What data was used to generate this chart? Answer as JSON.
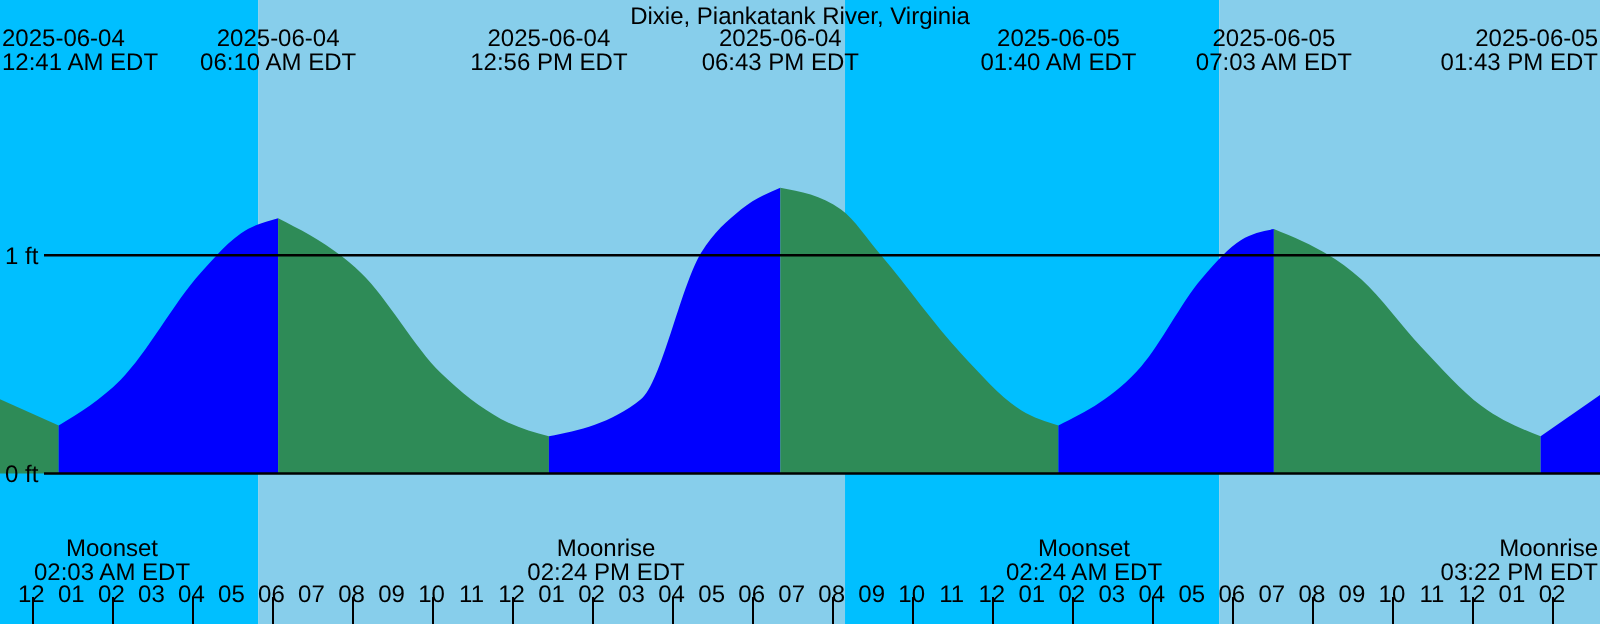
{
  "chart_data": {
    "type": "area",
    "title": "Dixie, Piankatank River, Virginia",
    "xlim": [
      "2025-06-03T23:13",
      "2025-06-05T15:12"
    ],
    "xticks": [
      {
        "value": "2025-06-04T00:00",
        "label": "12"
      },
      {
        "value": "2025-06-04T01:00",
        "label": "01"
      },
      {
        "value": "2025-06-04T02:00",
        "label": "02"
      },
      {
        "value": "2025-06-04T03:00",
        "label": "03"
      },
      {
        "value": "2025-06-04T04:00",
        "label": "04"
      },
      {
        "value": "2025-06-04T05:00",
        "label": "05"
      },
      {
        "value": "2025-06-04T06:00",
        "label": "06"
      },
      {
        "value": "2025-06-04T07:00",
        "label": "07"
      },
      {
        "value": "2025-06-04T08:00",
        "label": "08"
      },
      {
        "value": "2025-06-04T09:00",
        "label": "09"
      },
      {
        "value": "2025-06-04T10:00",
        "label": "10"
      },
      {
        "value": "2025-06-04T11:00",
        "label": "11"
      },
      {
        "value": "2025-06-04T12:00",
        "label": "12"
      },
      {
        "value": "2025-06-04T13:00",
        "label": "01"
      },
      {
        "value": "2025-06-04T14:00",
        "label": "02"
      },
      {
        "value": "2025-06-04T15:00",
        "label": "03"
      },
      {
        "value": "2025-06-04T16:00",
        "label": "04"
      },
      {
        "value": "2025-06-04T17:00",
        "label": "05"
      },
      {
        "value": "2025-06-04T18:00",
        "label": "06"
      },
      {
        "value": "2025-06-04T19:00",
        "label": "07"
      },
      {
        "value": "2025-06-04T20:00",
        "label": "08"
      },
      {
        "value": "2025-06-04T21:00",
        "label": "09"
      },
      {
        "value": "2025-06-04T22:00",
        "label": "10"
      },
      {
        "value": "2025-06-04T23:00",
        "label": "11"
      },
      {
        "value": "2025-06-05T00:00",
        "label": "12"
      },
      {
        "value": "2025-06-05T01:00",
        "label": "01"
      },
      {
        "value": "2025-06-05T02:00",
        "label": "02"
      },
      {
        "value": "2025-06-05T03:00",
        "label": "03"
      },
      {
        "value": "2025-06-05T04:00",
        "label": "04"
      },
      {
        "value": "2025-06-05T05:00",
        "label": "05"
      },
      {
        "value": "2025-06-05T06:00",
        "label": "06"
      },
      {
        "value": "2025-06-05T07:00",
        "label": "07"
      },
      {
        "value": "2025-06-05T08:00",
        "label": "08"
      },
      {
        "value": "2025-06-05T09:00",
        "label": "09"
      },
      {
        "value": "2025-06-05T10:00",
        "label": "10"
      },
      {
        "value": "2025-06-05T11:00",
        "label": "11"
      },
      {
        "value": "2025-06-05T12:00",
        "label": "12"
      },
      {
        "value": "2025-06-05T13:00",
        "label": "01"
      },
      {
        "value": "2025-06-05T14:00",
        "label": "02"
      }
    ],
    "ylim": [
      -0.69,
      2.17
    ],
    "yticks": [
      {
        "value": 0,
        "label": "0 ft"
      },
      {
        "value": 1,
        "label": "1 ft"
      }
    ],
    "grid": "y",
    "series": [
      {
        "color": "#2e8b57",
        "x": [
          "2025-06-03T23:13",
          "2025-06-04T00:41"
        ],
        "values": [
          0.34,
          0.22
        ]
      },
      {
        "color": "#0000ff",
        "x": [
          "2025-06-04T00:41",
          "2025-06-04T02:14",
          "2025-06-04T04:14",
          "2025-06-04T05:14",
          "2025-06-04T06:10"
        ],
        "values": [
          0.22,
          0.43,
          0.92,
          1.1,
          1.17
        ]
      },
      {
        "color": "#2e8b57",
        "x": [
          "2025-06-04T06:10",
          "2025-06-04T08:14",
          "2025-06-04T10:14",
          "2025-06-04T11:44",
          "2025-06-04T12:56"
        ],
        "values": [
          1.17,
          0.92,
          0.46,
          0.25,
          0.17
        ]
      },
      {
        "color": "#0000ff",
        "x": [
          "2025-06-04T12:56",
          "2025-06-04T15:14",
          "2025-06-04T16:44",
          "2025-06-04T17:44",
          "2025-06-04T18:43"
        ],
        "values": [
          0.17,
          0.34,
          1.01,
          1.21,
          1.31
        ]
      },
      {
        "color": "#2e8b57",
        "x": [
          "2025-06-04T18:43",
          "2025-06-04T20:14",
          "2025-06-04T21:14",
          "2025-06-04T23:14",
          "2025-06-05T00:44",
          "2025-06-05T01:40"
        ],
        "values": [
          1.31,
          1.21,
          1.0,
          0.55,
          0.29,
          0.22
        ]
      },
      {
        "color": "#0000ff",
        "x": [
          "2025-06-05T01:40",
          "2025-06-05T03:44",
          "2025-06-05T05:14",
          "2025-06-05T06:14",
          "2025-06-05T07:03"
        ],
        "values": [
          0.22,
          0.49,
          0.89,
          1.07,
          1.12
        ]
      },
      {
        "color": "#2e8b57",
        "x": [
          "2025-06-05T07:03",
          "2025-06-05T09:14",
          "2025-06-05T10:44",
          "2025-06-05T12:14",
          "2025-06-05T13:43"
        ],
        "values": [
          1.12,
          0.89,
          0.58,
          0.31,
          0.17
        ]
      },
      {
        "color": "#0000ff",
        "x": [
          "2025-06-05T13:43",
          "2025-06-05T15:12"
        ],
        "values": [
          0.17,
          0.36
        ]
      }
    ],
    "bands": [
      {
        "axis": "x",
        "from": "2025-06-03T23:13",
        "to": "2025-06-04T05:40",
        "color": "#00bfff"
      },
      {
        "axis": "x",
        "from": "2025-06-04T05:40",
        "to": "2025-06-04T20:20",
        "color": "#87ceeb"
      },
      {
        "axis": "x",
        "from": "2025-06-04T20:20",
        "to": "2025-06-05T05:41",
        "color": "#00bfff"
      },
      {
        "axis": "x",
        "from": "2025-06-05T05:41",
        "to": "2025-06-05T15:12",
        "color": "#87ceeb"
      }
    ],
    "annotations": [
      "2025-06-04\n12:41 AM EDT",
      "2025-06-04\n06:10 AM EDT",
      "2025-06-04\n12:56 PM EDT",
      "2025-06-04\n06:43 PM EDT",
      "2025-06-05\n01:40 AM EDT",
      "2025-06-05\n07:03 AM EDT",
      "2025-06-05\n01:43 PM EDT",
      "Moonset\n02:03 AM EDT",
      "Moonrise\n02:24 PM EDT",
      "Moonset\n02:24 AM EDT",
      "Moonrise\n03:22 PM EDT"
    ]
  }
}
